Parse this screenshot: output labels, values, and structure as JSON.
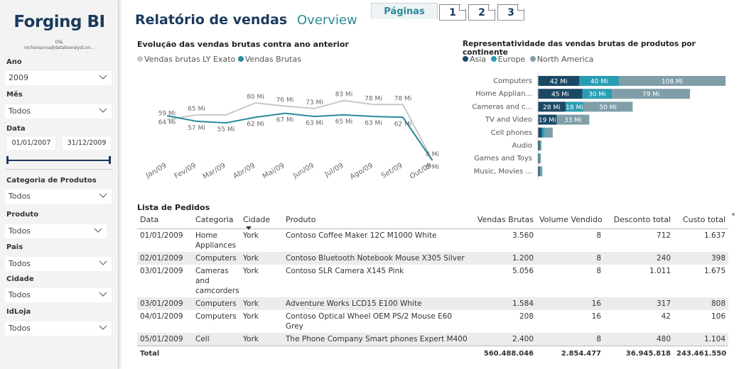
{
  "sidebar": {
    "brand": "Forging BI",
    "greeting": "Olá,",
    "email": "rochavianna@databianalyst.on...",
    "filters": {
      "ano": {
        "label": "Ano",
        "value": "2009"
      },
      "mes": {
        "label": "Mês",
        "value": "Todos"
      },
      "data": {
        "label": "Data",
        "start": "01/01/2007",
        "end": "31/12/2009"
      },
      "categoria": {
        "label": "Categoria de Produtos",
        "value": "Todos"
      },
      "produto": {
        "label": "Produto",
        "value": "Todos"
      },
      "pais": {
        "label": "Pais",
        "value": "Todos"
      },
      "cidade": {
        "label": "Cidade",
        "value": "Todos"
      },
      "idloja": {
        "label": "IdLoja",
        "value": "Todos"
      }
    }
  },
  "header": {
    "title": "Relatório de vendas",
    "overview": "Overview",
    "pages_label": "Páginas",
    "pages": [
      "1",
      "2",
      "3"
    ]
  },
  "line_chart_text": {
    "title": "Evolução das vendas brutas contra ano anterior",
    "legend_ly": "Vendas brutas LY Exato",
    "legend_cur": "Vendas Brutas"
  },
  "bar_chart_text": {
    "title": "Representatividade das vendas brutas de produtos por continente",
    "legend": [
      "Asia",
      "Europe",
      "North America"
    ]
  },
  "colors": {
    "asia": "#1b4965",
    "europe": "#2a9db3",
    "north_america": "#7f9ea8",
    "ly_line": "#c8c8c8",
    "current_line": "#2a8a9a",
    "brand": "#1b3a5c"
  },
  "chart_data": [
    {
      "type": "line",
      "title": "Evolução das vendas brutas contra ano anterior",
      "x": [
        "Jan/09",
        "Fev/09",
        "Mar/09",
        "Abr/09",
        "Mai/09",
        "Jun/09",
        "Jul/09",
        "Ago/09",
        "Set/09",
        "Out/09"
      ],
      "series": [
        {
          "name": "Vendas brutas LY Exato",
          "values": [
            59,
            65,
            65,
            80,
            76,
            73,
            83,
            78,
            78,
            8
          ],
          "labels": [
            "59 Mi",
            "65 Mi",
            "",
            "80 Mi",
            "76 Mi",
            "73 Mi",
            "83 Mi",
            "78 Mi",
            "78 Mi",
            "8 Mi"
          ]
        },
        {
          "name": "Vendas Brutas",
          "values": [
            64,
            57,
            55,
            62,
            67,
            63,
            65,
            63,
            62,
            8
          ],
          "labels": [
            "64 Mi",
            "57 Mi",
            "55 Mi",
            "62 Mi",
            "67 Mi",
            "63 Mi",
            "65 Mi",
            "63 Mi",
            "62 Mi",
            "8 Mi"
          ]
        }
      ],
      "extra_labels": [
        "63 Mi",
        "8 Mi"
      ]
    },
    {
      "type": "bar",
      "orientation": "horizontal",
      "stacked": true,
      "title": "Representatividade das vendas brutas de produtos por continente",
      "categories": [
        "Computers",
        "Home Applian...",
        "Cameras and c...",
        "TV and Video",
        "Cell phones",
        "Audio",
        "Games and Toys",
        "Music, Movies ..."
      ],
      "series": [
        {
          "name": "Asia",
          "values": [
            42,
            45,
            28,
            19,
            4,
            1.5,
            1,
            1.5
          ],
          "labels": [
            "42 Mi",
            "45 Mi",
            "28 Mi",
            "19 Mi",
            "",
            "",
            "",
            ""
          ]
        },
        {
          "name": "Europe",
          "values": [
            40,
            30,
            18,
            0,
            3,
            1,
            1,
            1
          ],
          "labels": [
            "40 Mi",
            "30 Mi",
            "18 Mi",
            "",
            "",
            "",
            "",
            ""
          ]
        },
        {
          "name": "North America",
          "values": [
            108,
            79,
            50,
            33,
            8,
            1,
            1,
            2
          ],
          "labels": [
            "108 Mi",
            "79 Mi",
            "50 Mi",
            "33 Mi",
            "",
            "",
            "",
            ""
          ]
        }
      ]
    }
  ],
  "table": {
    "title": "Lista de Pedidos",
    "columns": [
      "Data",
      "Categoria",
      "Cidade",
      "Produto",
      "Vendas Brutas",
      "Volume Vendido",
      "Desconto total",
      "Custo total"
    ],
    "rows": [
      [
        "01/01/2009",
        "Home Appliances",
        "York",
        "Contoso Coffee Maker 12C M1000 White",
        "3.560",
        "8",
        "712",
        "1.637"
      ],
      [
        "02/01/2009",
        "Computers",
        "York",
        "Contoso Bluetooth Notebook Mouse X305 Silver",
        "1.200",
        "8",
        "240",
        "398"
      ],
      [
        "03/01/2009",
        "Cameras and camcorders",
        "York",
        "Contoso SLR Camera X145 Pink",
        "5.056",
        "8",
        "1.011",
        "1.675"
      ],
      [
        "03/01/2009",
        "Computers",
        "York",
        "Adventure Works LCD15 E100 White",
        "1.584",
        "16",
        "317",
        "808"
      ],
      [
        "04/01/2009",
        "Computers",
        "York",
        "Contoso Optical Wheel OEM PS/2 Mouse E60 Grey",
        "208",
        "16",
        "42",
        "106"
      ],
      [
        "05/01/2009",
        "Cell",
        "York",
        "The Phone Company Smart phones Expert M400",
        "2.400",
        "8",
        "480",
        "1.104"
      ]
    ],
    "total": [
      "Total",
      "",
      "",
      "",
      "560.488.046",
      "2.854.477",
      "36.945.818",
      "243.461.550"
    ]
  }
}
